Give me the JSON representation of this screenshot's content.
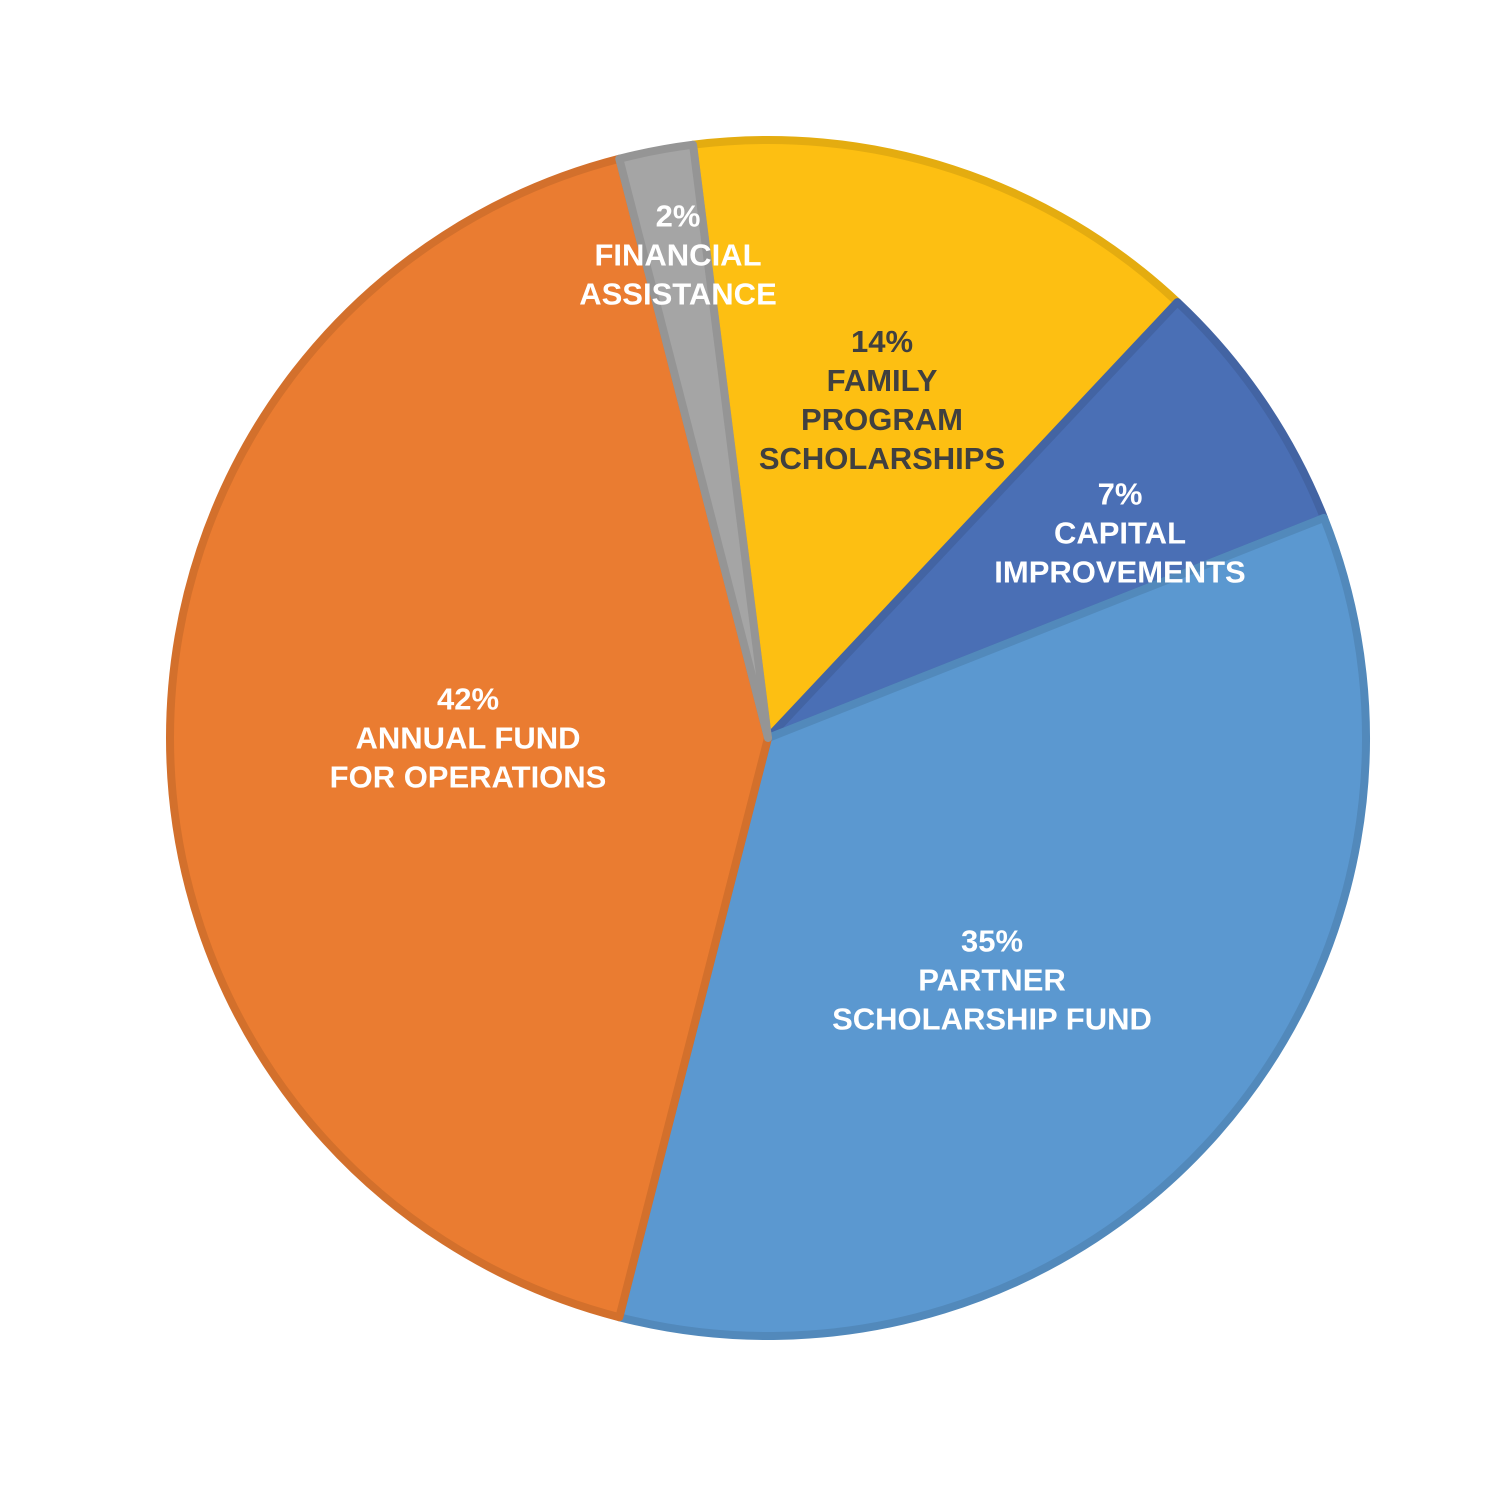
{
  "chart_data": {
    "type": "pie",
    "categories": [
      "FAMILY\nPROGRAM\nSCHOLARSHIPS",
      "CAPITAL\nIMPROVEMENTS",
      "PARTNER\nSCHOLARSHIP FUND",
      "ANNUAL FUND\nFOR OPERATIONS",
      "FINANCIAL\nASSISTANCE"
    ],
    "values": [
      14,
      7,
      35,
      42,
      2
    ],
    "value_labels": [
      "14%",
      "7%",
      "35%",
      "42%",
      "2%"
    ],
    "colors": [
      "#fdbf12",
      "#4a6fb5",
      "#5b98d0",
      "#ea7c31",
      "#a5a5a5"
    ]
  }
}
